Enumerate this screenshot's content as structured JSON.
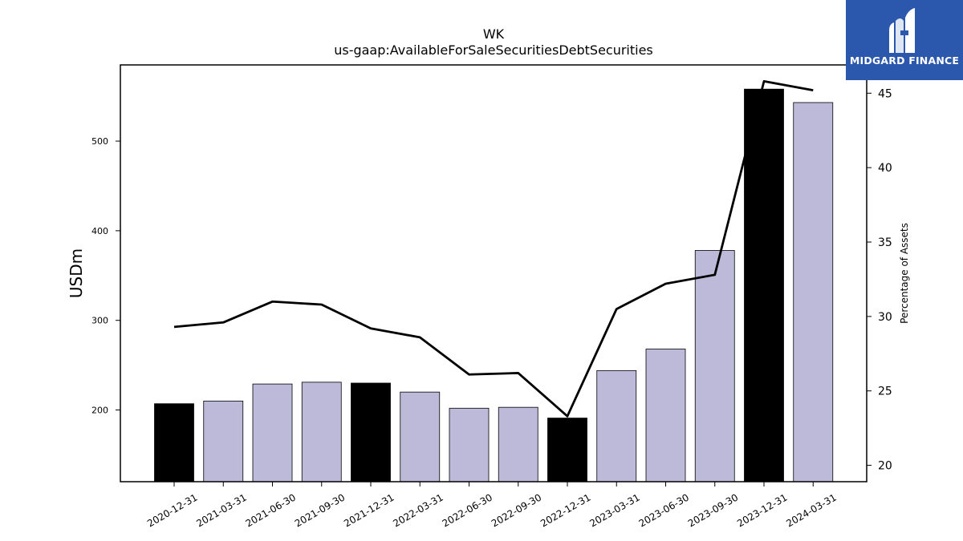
{
  "chart_data": {
    "type": "bar",
    "title": "WK",
    "subtitle": "us-gaap:AvailableForSaleSecuritiesDebtSecurities",
    "ylabel": "USDm",
    "y2label": "Percentage of Assets",
    "ylim": [
      120,
      585
    ],
    "y2lim": [
      18.9,
      46.9
    ],
    "yticks": [
      200,
      300,
      400,
      500
    ],
    "y2ticks": [
      20,
      25,
      30,
      35,
      40,
      45
    ],
    "categories": [
      "2020-12-31",
      "2021-03-31",
      "2021-06-30",
      "2021-09-30",
      "2021-12-31",
      "2022-03-31",
      "2022-06-30",
      "2022-09-30",
      "2022-12-31",
      "2023-03-31",
      "2023-06-30",
      "2023-09-30",
      "2023-12-31",
      "2024-03-31"
    ],
    "series": [
      {
        "axis": "left",
        "kind": "bar",
        "values": [
          207,
          210,
          229,
          231,
          230,
          220,
          202,
          203,
          191,
          244,
          268,
          378,
          558,
          543
        ],
        "highlight": [
          true,
          false,
          false,
          false,
          true,
          false,
          false,
          false,
          true,
          false,
          false,
          false,
          true,
          false
        ]
      },
      {
        "axis": "right",
        "kind": "line",
        "values": [
          29.3,
          29.6,
          31.0,
          30.8,
          29.2,
          28.6,
          26.1,
          26.2,
          23.3,
          30.5,
          32.2,
          32.8,
          45.8,
          45.2
        ]
      }
    ],
    "colors": {
      "bar": "#bdbad9",
      "highlight": "#000000",
      "line": "#000000"
    },
    "grid": false,
    "legend": "none"
  },
  "logo": {
    "text": "MIDGARD FINANCE"
  }
}
